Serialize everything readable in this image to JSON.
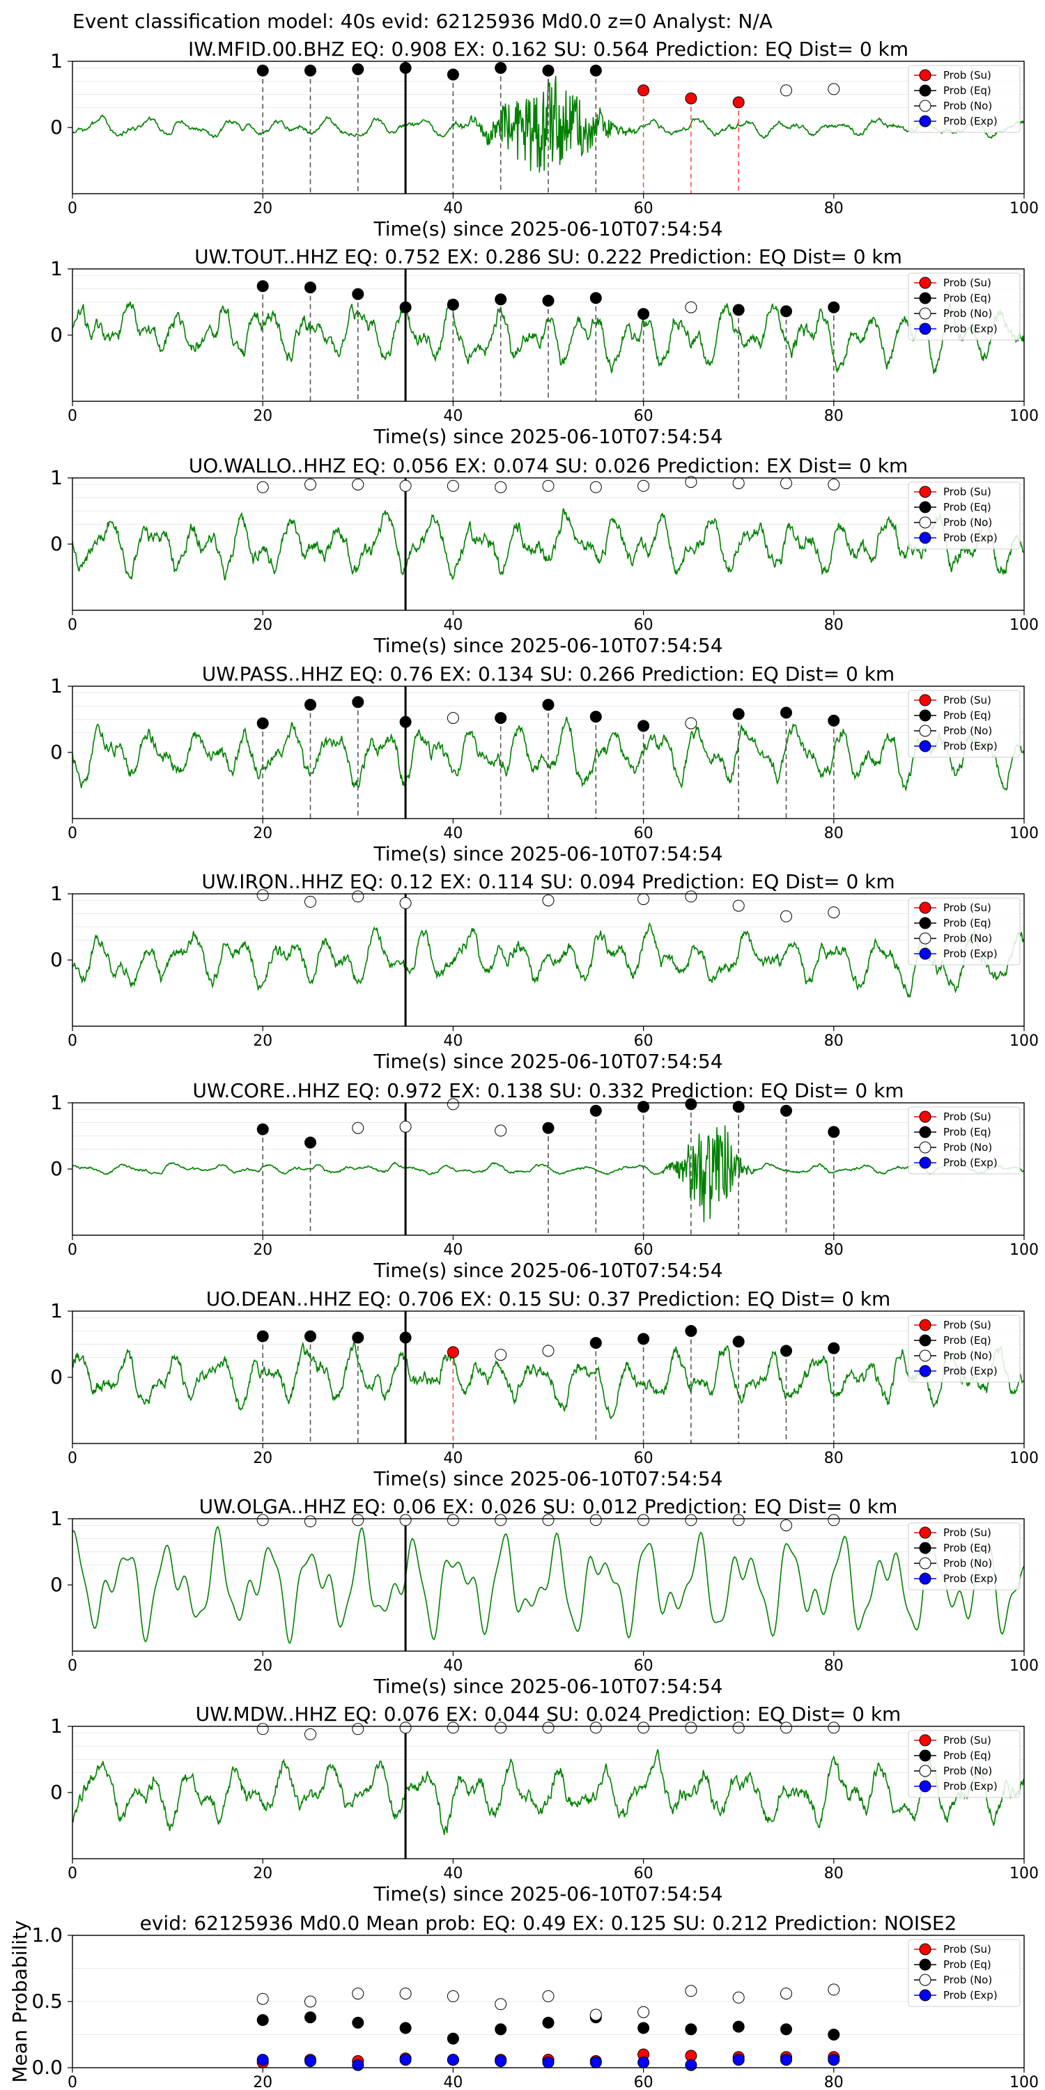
{
  "figure_title": "Event classification model: 40s evid: 62125936 Md0.0 z=0 Analyst: N/A",
  "legend_labels": [
    "Prob (Su)",
    "Prob (Eq)",
    "Prob (No)",
    "Prob (Exp)"
  ],
  "colors": {
    "su": "#ff0000",
    "eq": "#000000",
    "no": "#ffffff",
    "exp": "#0000ff",
    "waveform": "#008000",
    "pick_line": "#000000"
  },
  "chart_data": [
    {
      "type": "line",
      "title": "IW.MFID.00.BHZ   EQ: 0.908  EX: 0.162  SU: 0.564   Prediction: EQ    Dist= 0 km",
      "xlabel": "Time(s) since 2025-06-10T07:54:54",
      "ylabel": "",
      "xlim": [
        0,
        100
      ],
      "ylim": [
        -1,
        1
      ],
      "xticks": [
        0,
        20,
        40,
        60,
        80,
        100
      ],
      "yticks": [
        0,
        1
      ],
      "pick_time": 35,
      "legend_position": "top-right",
      "waveform": {
        "amplitude": 0.14,
        "seed": 3,
        "bursts": [
          [
            50,
            0.7,
            4
          ]
        ]
      },
      "window_points": [
        {
          "x": 20,
          "y": 0.86,
          "cls": "eq"
        },
        {
          "x": 25,
          "y": 0.86,
          "cls": "eq"
        },
        {
          "x": 30,
          "y": 0.88,
          "cls": "eq"
        },
        {
          "x": 35,
          "y": 0.9,
          "cls": "eq"
        },
        {
          "x": 40,
          "y": 0.8,
          "cls": "eq"
        },
        {
          "x": 45,
          "y": 0.9,
          "cls": "eq"
        },
        {
          "x": 50,
          "y": 0.86,
          "cls": "eq"
        },
        {
          "x": 55,
          "y": 0.86,
          "cls": "eq"
        },
        {
          "x": 60,
          "y": 0.56,
          "cls": "su"
        },
        {
          "x": 65,
          "y": 0.44,
          "cls": "su"
        },
        {
          "x": 70,
          "y": 0.38,
          "cls": "su"
        },
        {
          "x": 75,
          "y": 0.56,
          "cls": "no"
        },
        {
          "x": 80,
          "y": 0.58,
          "cls": "no"
        }
      ]
    },
    {
      "type": "line",
      "title": "UW.TOUT..HHZ   EQ: 0.752  EX: 0.286  SU: 0.222   Prediction: EQ    Dist= 0 km",
      "xlabel": "Time(s) since 2025-06-10T07:54:54",
      "ylabel": "",
      "xlim": [
        0,
        100
      ],
      "ylim": [
        -1,
        1
      ],
      "xticks": [
        0,
        20,
        40,
        60,
        80,
        100
      ],
      "yticks": [
        0,
        1
      ],
      "pick_time": 35,
      "legend_position": "top-right",
      "waveform": {
        "amplitude": 0.45,
        "seed": 7,
        "bursts": []
      },
      "window_points": [
        {
          "x": 20,
          "y": 0.74,
          "cls": "eq"
        },
        {
          "x": 25,
          "y": 0.72,
          "cls": "eq"
        },
        {
          "x": 30,
          "y": 0.62,
          "cls": "eq"
        },
        {
          "x": 35,
          "y": 0.42,
          "cls": "eq"
        },
        {
          "x": 40,
          "y": 0.46,
          "cls": "eq"
        },
        {
          "x": 45,
          "y": 0.54,
          "cls": "eq"
        },
        {
          "x": 50,
          "y": 0.52,
          "cls": "eq"
        },
        {
          "x": 55,
          "y": 0.56,
          "cls": "eq"
        },
        {
          "x": 60,
          "y": 0.32,
          "cls": "eq"
        },
        {
          "x": 65,
          "y": 0.42,
          "cls": "no"
        },
        {
          "x": 70,
          "y": 0.38,
          "cls": "eq"
        },
        {
          "x": 75,
          "y": 0.36,
          "cls": "eq"
        },
        {
          "x": 80,
          "y": 0.42,
          "cls": "eq"
        }
      ]
    },
    {
      "type": "line",
      "title": "UO.WALLO..HHZ   EQ: 0.056  EX: 0.074  SU: 0.026   Prediction: EX    Dist= 0 km",
      "xlabel": "Time(s) since 2025-06-10T07:54:54",
      "ylabel": "",
      "xlim": [
        0,
        100
      ],
      "ylim": [
        -1,
        1
      ],
      "xticks": [
        0,
        20,
        40,
        60,
        80,
        100
      ],
      "yticks": [
        0,
        1
      ],
      "pick_time": 35,
      "legend_position": "top-right",
      "waveform": {
        "amplitude": 0.45,
        "seed": 11,
        "bursts": []
      },
      "window_points": [
        {
          "x": 20,
          "y": 0.86,
          "cls": "no"
        },
        {
          "x": 25,
          "y": 0.9,
          "cls": "no"
        },
        {
          "x": 30,
          "y": 0.9,
          "cls": "no"
        },
        {
          "x": 35,
          "y": 0.88,
          "cls": "no"
        },
        {
          "x": 40,
          "y": 0.88,
          "cls": "no"
        },
        {
          "x": 45,
          "y": 0.86,
          "cls": "no"
        },
        {
          "x": 50,
          "y": 0.88,
          "cls": "no"
        },
        {
          "x": 55,
          "y": 0.86,
          "cls": "no"
        },
        {
          "x": 60,
          "y": 0.88,
          "cls": "no"
        },
        {
          "x": 65,
          "y": 0.94,
          "cls": "no"
        },
        {
          "x": 70,
          "y": 0.92,
          "cls": "no"
        },
        {
          "x": 75,
          "y": 0.92,
          "cls": "no"
        },
        {
          "x": 80,
          "y": 0.9,
          "cls": "no"
        }
      ]
    },
    {
      "type": "line",
      "title": "UW.PASS..HHZ   EQ: 0.76  EX: 0.134  SU: 0.266   Prediction: EQ    Dist= 0 km",
      "xlabel": "Time(s) since 2025-06-10T07:54:54",
      "ylabel": "",
      "xlim": [
        0,
        100
      ],
      "ylim": [
        -1,
        1
      ],
      "xticks": [
        0,
        20,
        40,
        60,
        80,
        100
      ],
      "yticks": [
        0,
        1
      ],
      "pick_time": 35,
      "legend_position": "top-right",
      "waveform": {
        "amplitude": 0.42,
        "seed": 13,
        "bursts": []
      },
      "window_points": [
        {
          "x": 20,
          "y": 0.44,
          "cls": "eq"
        },
        {
          "x": 25,
          "y": 0.72,
          "cls": "eq"
        },
        {
          "x": 30,
          "y": 0.76,
          "cls": "eq"
        },
        {
          "x": 35,
          "y": 0.46,
          "cls": "eq"
        },
        {
          "x": 40,
          "y": 0.52,
          "cls": "no"
        },
        {
          "x": 45,
          "y": 0.52,
          "cls": "eq"
        },
        {
          "x": 50,
          "y": 0.72,
          "cls": "eq"
        },
        {
          "x": 55,
          "y": 0.54,
          "cls": "eq"
        },
        {
          "x": 60,
          "y": 0.4,
          "cls": "eq"
        },
        {
          "x": 65,
          "y": 0.44,
          "cls": "no"
        },
        {
          "x": 70,
          "y": 0.58,
          "cls": "eq"
        },
        {
          "x": 75,
          "y": 0.6,
          "cls": "eq"
        },
        {
          "x": 80,
          "y": 0.48,
          "cls": "eq"
        }
      ]
    },
    {
      "type": "line",
      "title": "UW.IRON..HHZ   EQ: 0.12  EX: 0.114  SU: 0.094   Prediction: EQ    Dist= 0 km",
      "xlabel": "Time(s) since 2025-06-10T07:54:54",
      "ylabel": "",
      "xlim": [
        0,
        100
      ],
      "ylim": [
        -1,
        1
      ],
      "xticks": [
        0,
        20,
        40,
        60,
        80,
        100
      ],
      "yticks": [
        0,
        1
      ],
      "pick_time": 35,
      "legend_position": "top-right",
      "waveform": {
        "amplitude": 0.4,
        "seed": 17,
        "bursts": []
      },
      "window_points": [
        {
          "x": 20,
          "y": 0.98,
          "cls": "no"
        },
        {
          "x": 25,
          "y": 0.88,
          "cls": "no"
        },
        {
          "x": 30,
          "y": 0.96,
          "cls": "no"
        },
        {
          "x": 35,
          "y": 0.86,
          "cls": "no"
        },
        {
          "x": 50,
          "y": 0.9,
          "cls": "no"
        },
        {
          "x": 60,
          "y": 0.92,
          "cls": "no"
        },
        {
          "x": 65,
          "y": 0.96,
          "cls": "no"
        },
        {
          "x": 70,
          "y": 0.82,
          "cls": "no"
        },
        {
          "x": 75,
          "y": 0.66,
          "cls": "no"
        },
        {
          "x": 80,
          "y": 0.72,
          "cls": "no"
        }
      ]
    },
    {
      "type": "line",
      "title": "UW.CORE..HHZ   EQ: 0.972  EX: 0.138  SU: 0.332   Prediction: EQ    Dist= 0 km",
      "xlabel": "Time(s) since 2025-06-10T07:54:54",
      "ylabel": "",
      "xlim": [
        0,
        100
      ],
      "ylim": [
        -1,
        1
      ],
      "xticks": [
        0,
        20,
        40,
        60,
        80,
        100
      ],
      "yticks": [
        0,
        1
      ],
      "pick_time": 35,
      "legend_position": "top-right",
      "waveform": {
        "amplitude": 0.08,
        "seed": 19,
        "bursts": [
          [
            67,
            0.9,
            2
          ]
        ]
      },
      "window_points": [
        {
          "x": 20,
          "y": 0.6,
          "cls": "eq"
        },
        {
          "x": 25,
          "y": 0.4,
          "cls": "eq"
        },
        {
          "x": 30,
          "y": 0.62,
          "cls": "no"
        },
        {
          "x": 35,
          "y": 0.64,
          "cls": "no"
        },
        {
          "x": 40,
          "y": 0.98,
          "cls": "no"
        },
        {
          "x": 45,
          "y": 0.58,
          "cls": "no"
        },
        {
          "x": 50,
          "y": 0.62,
          "cls": "eq"
        },
        {
          "x": 55,
          "y": 0.88,
          "cls": "eq"
        },
        {
          "x": 60,
          "y": 0.94,
          "cls": "eq"
        },
        {
          "x": 65,
          "y": 0.98,
          "cls": "eq"
        },
        {
          "x": 70,
          "y": 0.94,
          "cls": "eq"
        },
        {
          "x": 75,
          "y": 0.88,
          "cls": "eq"
        },
        {
          "x": 80,
          "y": 0.56,
          "cls": "eq"
        }
      ]
    },
    {
      "type": "line",
      "title": "UO.DEAN..HHZ   EQ: 0.706  EX: 0.15  SU: 0.37   Prediction: EQ    Dist= 0 km",
      "xlabel": "Time(s) since 2025-06-10T07:54:54",
      "ylabel": "",
      "xlim": [
        0,
        100
      ],
      "ylim": [
        -1,
        1
      ],
      "xticks": [
        0,
        20,
        40,
        60,
        80,
        100
      ],
      "yticks": [
        0,
        1
      ],
      "pick_time": 35,
      "legend_position": "top-right",
      "waveform": {
        "amplitude": 0.42,
        "seed": 23,
        "bursts": []
      },
      "window_points": [
        {
          "x": 20,
          "y": 0.62,
          "cls": "eq"
        },
        {
          "x": 25,
          "y": 0.62,
          "cls": "eq"
        },
        {
          "x": 30,
          "y": 0.6,
          "cls": "eq"
        },
        {
          "x": 35,
          "y": 0.6,
          "cls": "eq"
        },
        {
          "x": 40,
          "y": 0.38,
          "cls": "su"
        },
        {
          "x": 45,
          "y": 0.34,
          "cls": "no"
        },
        {
          "x": 50,
          "y": 0.4,
          "cls": "no"
        },
        {
          "x": 55,
          "y": 0.52,
          "cls": "eq"
        },
        {
          "x": 60,
          "y": 0.58,
          "cls": "eq"
        },
        {
          "x": 65,
          "y": 0.7,
          "cls": "eq"
        },
        {
          "x": 70,
          "y": 0.54,
          "cls": "eq"
        },
        {
          "x": 75,
          "y": 0.4,
          "cls": "eq"
        },
        {
          "x": 80,
          "y": 0.44,
          "cls": "eq"
        }
      ]
    },
    {
      "type": "line",
      "title": "UW.OLGA..HHZ   EQ: 0.06  EX: 0.026  SU: 0.012   Prediction: EQ    Dist= 0 km",
      "xlabel": "Time(s) since 2025-06-10T07:54:54",
      "ylabel": "",
      "xlim": [
        0,
        100
      ],
      "ylim": [
        -1,
        1
      ],
      "xticks": [
        0,
        20,
        40,
        60,
        80,
        100
      ],
      "yticks": [
        0,
        1
      ],
      "pick_time": 35,
      "legend_position": "top-right",
      "waveform": {
        "amplitude": 0.55,
        "seed": 29,
        "bursts": [],
        "smooth": true
      },
      "window_points": [
        {
          "x": 20,
          "y": 0.98,
          "cls": "no"
        },
        {
          "x": 25,
          "y": 0.96,
          "cls": "no"
        },
        {
          "x": 30,
          "y": 0.98,
          "cls": "no"
        },
        {
          "x": 35,
          "y": 0.98,
          "cls": "no"
        },
        {
          "x": 40,
          "y": 0.98,
          "cls": "no"
        },
        {
          "x": 45,
          "y": 0.98,
          "cls": "no"
        },
        {
          "x": 50,
          "y": 0.98,
          "cls": "no"
        },
        {
          "x": 55,
          "y": 0.98,
          "cls": "no"
        },
        {
          "x": 60,
          "y": 0.98,
          "cls": "no"
        },
        {
          "x": 65,
          "y": 0.98,
          "cls": "no"
        },
        {
          "x": 70,
          "y": 0.98,
          "cls": "no"
        },
        {
          "x": 75,
          "y": 0.9,
          "cls": "no"
        },
        {
          "x": 80,
          "y": 0.98,
          "cls": "no"
        }
      ]
    },
    {
      "type": "line",
      "title": "UW.MDW..HHZ   EQ: 0.076  EX: 0.044  SU: 0.024   Prediction: EQ    Dist= 0 km",
      "xlabel": "Time(s) since 2025-06-10T07:54:54",
      "ylabel": "",
      "xlim": [
        0,
        100
      ],
      "ylim": [
        -1,
        1
      ],
      "xticks": [
        0,
        20,
        40,
        60,
        80,
        100
      ],
      "yticks": [
        0,
        1
      ],
      "pick_time": 35,
      "legend_position": "top-right",
      "waveform": {
        "amplitude": 0.45,
        "seed": 31,
        "bursts": []
      },
      "window_points": [
        {
          "x": 20,
          "y": 0.96,
          "cls": "no"
        },
        {
          "x": 25,
          "y": 0.88,
          "cls": "no"
        },
        {
          "x": 30,
          "y": 0.96,
          "cls": "no"
        },
        {
          "x": 35,
          "y": 0.98,
          "cls": "no"
        },
        {
          "x": 40,
          "y": 0.98,
          "cls": "no"
        },
        {
          "x": 45,
          "y": 0.98,
          "cls": "no"
        },
        {
          "x": 50,
          "y": 0.98,
          "cls": "no"
        },
        {
          "x": 55,
          "y": 0.98,
          "cls": "no"
        },
        {
          "x": 60,
          "y": 0.98,
          "cls": "no"
        },
        {
          "x": 65,
          "y": 0.98,
          "cls": "no"
        },
        {
          "x": 70,
          "y": 0.98,
          "cls": "no"
        },
        {
          "x": 75,
          "y": 0.98,
          "cls": "no"
        },
        {
          "x": 80,
          "y": 0.98,
          "cls": "no"
        }
      ]
    },
    {
      "type": "scatter",
      "title": "evid: 62125936  Md0.0   Mean prob:    EQ: 0.49  EX: 0.125  SU: 0.212   Prediction: NOISE2",
      "xlabel": "",
      "ylabel": "Mean Probability",
      "xlim": [
        0,
        100
      ],
      "ylim": [
        0,
        1
      ],
      "xticks": [
        0,
        20,
        40,
        60,
        80,
        100
      ],
      "yticks": [
        0.0,
        0.5,
        1.0
      ],
      "ytick_labels": [
        "0.0",
        "0.5",
        "1.0"
      ],
      "legend_position": "top-right",
      "x": [
        20,
        25,
        30,
        35,
        40,
        45,
        50,
        55,
        60,
        65,
        70,
        75,
        80
      ],
      "series": [
        {
          "name": "Prob (Su)",
          "cls": "su",
          "values": [
            0.04,
            0.06,
            0.05,
            0.07,
            0.06,
            0.06,
            0.06,
            0.05,
            0.1,
            0.09,
            0.08,
            0.08,
            0.08
          ]
        },
        {
          "name": "Prob (Eq)",
          "cls": "eq",
          "values": [
            0.36,
            0.38,
            0.34,
            0.3,
            0.22,
            0.29,
            0.34,
            0.38,
            0.3,
            0.29,
            0.31,
            0.29,
            0.25
          ]
        },
        {
          "name": "Prob (No)",
          "cls": "no",
          "values": [
            0.52,
            0.5,
            0.56,
            0.56,
            0.54,
            0.48,
            0.54,
            0.4,
            0.42,
            0.58,
            0.53,
            0.56,
            0.59
          ]
        },
        {
          "name": "Prob (Exp)",
          "cls": "exp",
          "values": [
            0.06,
            0.05,
            0.02,
            0.06,
            0.06,
            0.05,
            0.04,
            0.04,
            0.04,
            0.02,
            0.06,
            0.06,
            0.06
          ]
        }
      ]
    }
  ]
}
